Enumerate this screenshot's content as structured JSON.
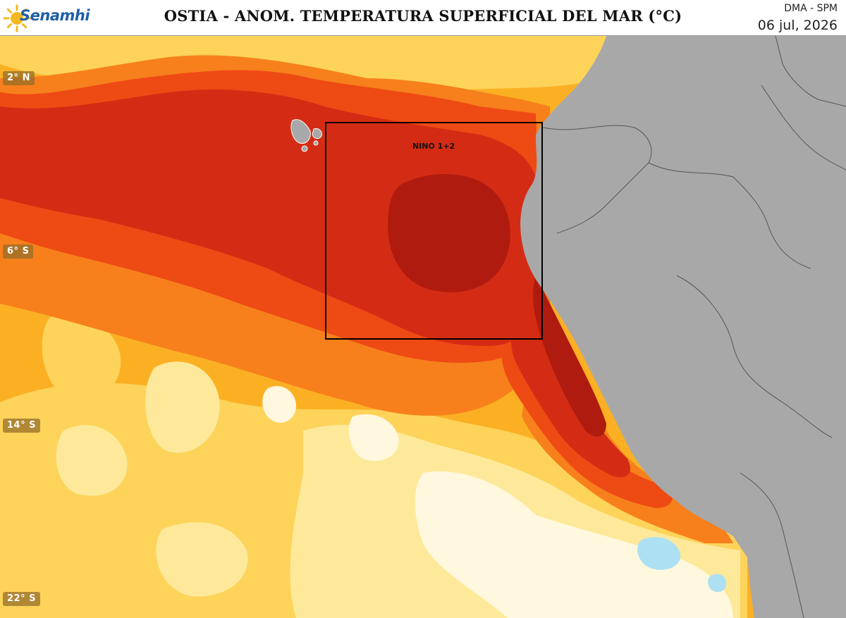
{
  "header": {
    "logo_text": "Senamhi",
    "title": "OSTIA - ANOM. TEMPERATURA SUPERFICIAL DEL MAR (°C)",
    "agency": "DMA - SPM",
    "date": "06 jul, 2026"
  },
  "map": {
    "latitude_labels": [
      "2° N",
      "6° S",
      "14° S",
      "22° S"
    ],
    "region_box_label": "NINO 1+2",
    "colors": {
      "land": "#a8a8a8",
      "anomaly_extreme": "#b01b10",
      "anomaly_very_high": "#d42c14",
      "anomaly_high": "#ee4a14",
      "anomaly_moderate": "#f7801c",
      "anomaly_mild": "#fbb024",
      "anomaly_low": "#fdd35a",
      "anomaly_very_low": "#fee99a",
      "anomaly_near_zero": "#fff8de",
      "anomaly_negative": "#aee0f4"
    }
  }
}
